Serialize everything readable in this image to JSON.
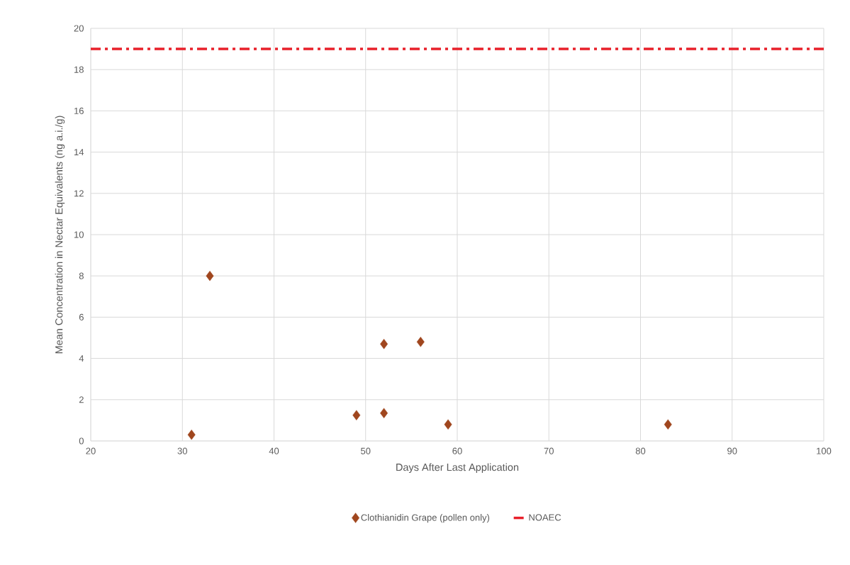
{
  "chart_data": {
    "type": "scatter",
    "xlabel": "Days After Last Application",
    "ylabel": "Mean Concentration in Nectar Equivalents (ng a.i./g)",
    "x": [
      31,
      33,
      49,
      52,
      52,
      56,
      59,
      83
    ],
    "series": [
      {
        "name": "Clothianidin Grape (pollen only)",
        "color": "#a0461e",
        "values": [
          0.3,
          8.0,
          1.25,
          1.35,
          4.7,
          4.8,
          0.8,
          0.8
        ]
      }
    ],
    "xlim": [
      20,
      100
    ],
    "xticks": [
      20,
      30,
      40,
      50,
      60,
      70,
      80,
      90,
      100
    ],
    "ylim": [
      0,
      20
    ],
    "yticks": [
      0,
      2,
      4,
      6,
      8,
      10,
      12,
      14,
      16,
      18,
      20
    ],
    "ref_lines": [
      {
        "axis": "y",
        "value": 19,
        "label": "NOAEC",
        "color": "#e8202a",
        "line_style": "dashdot"
      }
    ],
    "grid": true,
    "legend": "bottom",
    "marker": "diamond"
  }
}
